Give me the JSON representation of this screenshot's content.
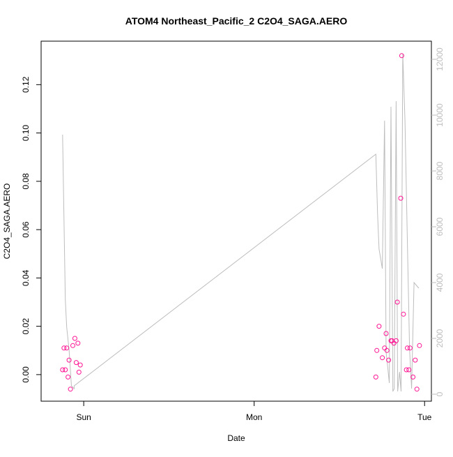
{
  "chart_data": {
    "type": "scatter",
    "title": "ATOM4 Northeast_Pacific_2 C2O4_SAGA.AERO",
    "xlabel": "Date",
    "ylabel": "C2O4_SAGA.AERO",
    "x_tick_labels": [
      "Sun",
      "Mon",
      "Tue"
    ],
    "x_ticks_days": [
      0,
      1,
      2
    ],
    "xlim_days": [
      -0.25,
      2.04
    ],
    "ylim": [
      -0.011,
      0.138
    ],
    "y_ticks": [
      0.0,
      0.02,
      0.04,
      0.06,
      0.08,
      0.1,
      0.12
    ],
    "y_tick_labels": [
      "0.00",
      "0.02",
      "0.04",
      "0.06",
      "0.08",
      "0.10",
      "0.12"
    ],
    "y2lim": [
      -250,
      12650
    ],
    "y2_ticks": [
      0,
      2000,
      4000,
      6000,
      8000,
      10000,
      12000
    ],
    "y2_tick_labels": [
      "0",
      "2000",
      "4000",
      "6000",
      "8000",
      "10000",
      "12000"
    ],
    "colors": {
      "points": "#ff1493",
      "altitude_line": "#bdbdbd",
      "axis": "#000000",
      "right_axis": "#bdbdbd"
    },
    "grid": false,
    "series": [
      {
        "kind": "points",
        "x": [
          -0.124,
          -0.116,
          -0.108,
          -0.1,
          -0.092,
          -0.086,
          -0.078,
          -0.064,
          -0.052,
          -0.044,
          -0.034,
          -0.028,
          -0.02,
          1.714,
          1.72,
          1.733,
          1.752,
          1.765,
          1.774,
          1.779,
          1.789,
          1.803,
          1.809,
          1.82,
          1.833,
          1.84,
          1.86,
          1.866,
          1.876,
          1.893,
          1.899,
          1.908,
          1.915,
          1.932,
          1.945,
          1.955,
          1.97
        ],
        "y": [
          0.002,
          0.011,
          0.002,
          0.011,
          -0.001,
          0.006,
          -0.006,
          0.012,
          0.015,
          0.005,
          0.013,
          0.001,
          0.004,
          -0.001,
          0.01,
          0.02,
          0.007,
          0.011,
          0.017,
          0.01,
          0.006,
          0.014,
          0.014,
          0.013,
          0.014,
          0.03,
          0.073,
          0.132,
          0.025,
          0.002,
          0.011,
          0.002,
          0.011,
          -0.001,
          0.006,
          -0.006,
          0.012
        ]
      },
      {
        "kind": "line",
        "axis": "right",
        "x": [
          -0.124,
          -0.108,
          -0.1,
          -0.086,
          -0.072,
          -0.056,
          -0.056,
          1.714,
          1.724,
          1.733,
          1.752,
          1.765,
          1.774,
          1.785,
          1.793,
          1.803,
          1.814,
          1.822,
          1.833,
          1.842,
          1.853,
          1.862,
          1.872,
          1.885,
          1.899,
          1.912,
          1.924,
          1.938,
          1.952,
          1.966
        ],
        "y": [
          9300,
          3400,
          2400,
          1600,
          300,
          200,
          300,
          8600,
          6500,
          5200,
          4500,
          9800,
          1500,
          900,
          400,
          10300,
          100,
          200,
          10500,
          100,
          800,
          100,
          12200,
          9800,
          5500,
          1600,
          200,
          4000,
          3900,
          3800
        ]
      }
    ]
  }
}
